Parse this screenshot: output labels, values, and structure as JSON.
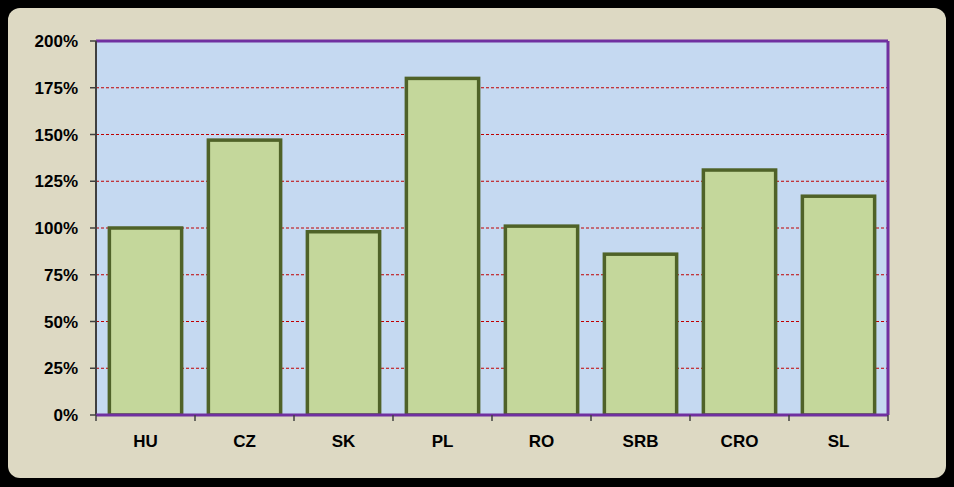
{
  "chart_data": {
    "type": "bar",
    "categories": [
      "HU",
      "CZ",
      "SK",
      "PL",
      "RO",
      "SRB",
      "CRO",
      "SL"
    ],
    "values": [
      100,
      147,
      98,
      180,
      101,
      86,
      131,
      117
    ],
    "color": "#c4d79b",
    "ylim": [
      0,
      200
    ],
    "yticks": [
      {
        "value": 0,
        "label": "0%"
      },
      {
        "value": 25,
        "label": "25%"
      },
      {
        "value": 50,
        "label": "50%"
      },
      {
        "value": 75,
        "label": "75%"
      },
      {
        "value": 100,
        "label": "100%"
      },
      {
        "value": 125,
        "label": "125%"
      },
      {
        "value": 150,
        "label": "150%"
      },
      {
        "value": 175,
        "label": "175%"
      },
      {
        "value": 200,
        "label": "200%"
      }
    ],
    "grid": true
  }
}
